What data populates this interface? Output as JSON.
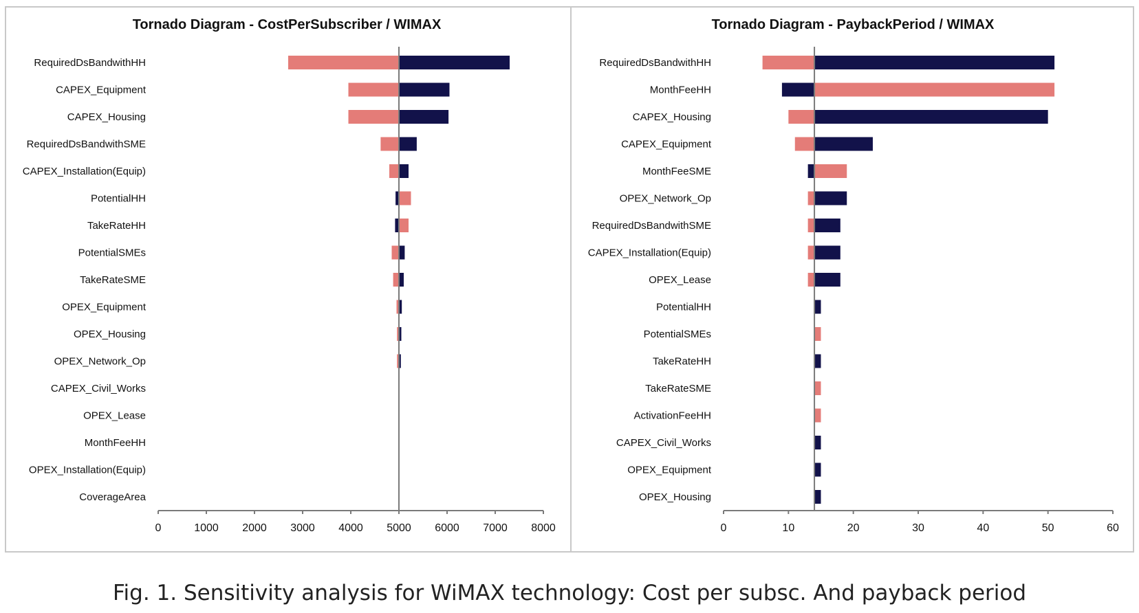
{
  "colors": {
    "low": "#e47c78",
    "high": "#12124a",
    "axis": "#7a7a7a",
    "frame": "#c8c8c8"
  },
  "chart_data": [
    {
      "type": "bar",
      "subtype": "tornado",
      "title": "Tornado Diagram - CostPerSubscriber / WIMAX",
      "xlabel": "",
      "ylabel": "",
      "base": 5000,
      "xlim": [
        0,
        8000
      ],
      "xticks": [
        0,
        1000,
        2000,
        3000,
        4000,
        5000,
        6000,
        7000,
        8000
      ],
      "grid": false,
      "categories": [
        "RequiredDsBandwithHH",
        "CAPEX_Equipment",
        "CAPEX_Housing",
        "RequiredDsBandwithSME",
        "CAPEX_Installation(Equip)",
        "PotentialHH",
        "TakeRateHH",
        "PotentialSMEs",
        "TakeRateSME",
        "OPEX_Equipment",
        "OPEX_Housing",
        "OPEX_Network_Op",
        "CAPEX_Civil_Works",
        "OPEX_Lease",
        "MonthFeeHH",
        "OPEX_Installation(Equip)",
        "CoverageArea"
      ],
      "series": [
        {
          "name": "low",
          "values": [
            2700,
            3950,
            3950,
            4620,
            4800,
            5250,
            5200,
            4850,
            4880,
            4950,
            4960,
            4960,
            5000,
            5000,
            5000,
            5000,
            5000
          ]
        },
        {
          "name": "high",
          "values": [
            7300,
            6050,
            6030,
            5370,
            5200,
            4930,
            4920,
            5120,
            5100,
            5060,
            5050,
            5040,
            5000,
            5000,
            5000,
            5000,
            5000
          ]
        }
      ]
    },
    {
      "type": "bar",
      "subtype": "tornado",
      "title": "Tornado Diagram - PaybackPeriod / WIMAX",
      "xlabel": "",
      "ylabel": "",
      "base": 14,
      "xlim": [
        0,
        60
      ],
      "xticks": [
        0,
        10,
        20,
        30,
        40,
        50,
        60
      ],
      "grid": false,
      "categories": [
        "RequiredDsBandwithHH",
        "MonthFeeHH",
        "CAPEX_Housing",
        "CAPEX_Equipment",
        "MonthFeeSME",
        "OPEX_Network_Op",
        "RequiredDsBandwithSME",
        "CAPEX_Installation(Equip)",
        "OPEX_Lease",
        "PotentialHH",
        "PotentialSMEs",
        "TakeRateHH",
        "TakeRateSME",
        "ActivationFeeHH",
        "CAPEX_Civil_Works",
        "OPEX_Equipment",
        "OPEX_Housing"
      ],
      "series": [
        {
          "name": "low",
          "values": [
            6,
            51,
            10,
            11,
            19,
            13,
            13,
            13,
            13,
            14,
            15,
            14,
            15,
            15,
            14,
            14,
            14
          ]
        },
        {
          "name": "high",
          "values": [
            51,
            9,
            50,
            23,
            13,
            19,
            18,
            18,
            18,
            15,
            14,
            15,
            14,
            14,
            15,
            15,
            15
          ]
        }
      ]
    }
  ],
  "caption": "Fig. 1. Sensitivity analysis for WiMAX technology: Cost per subsc. And payback period"
}
